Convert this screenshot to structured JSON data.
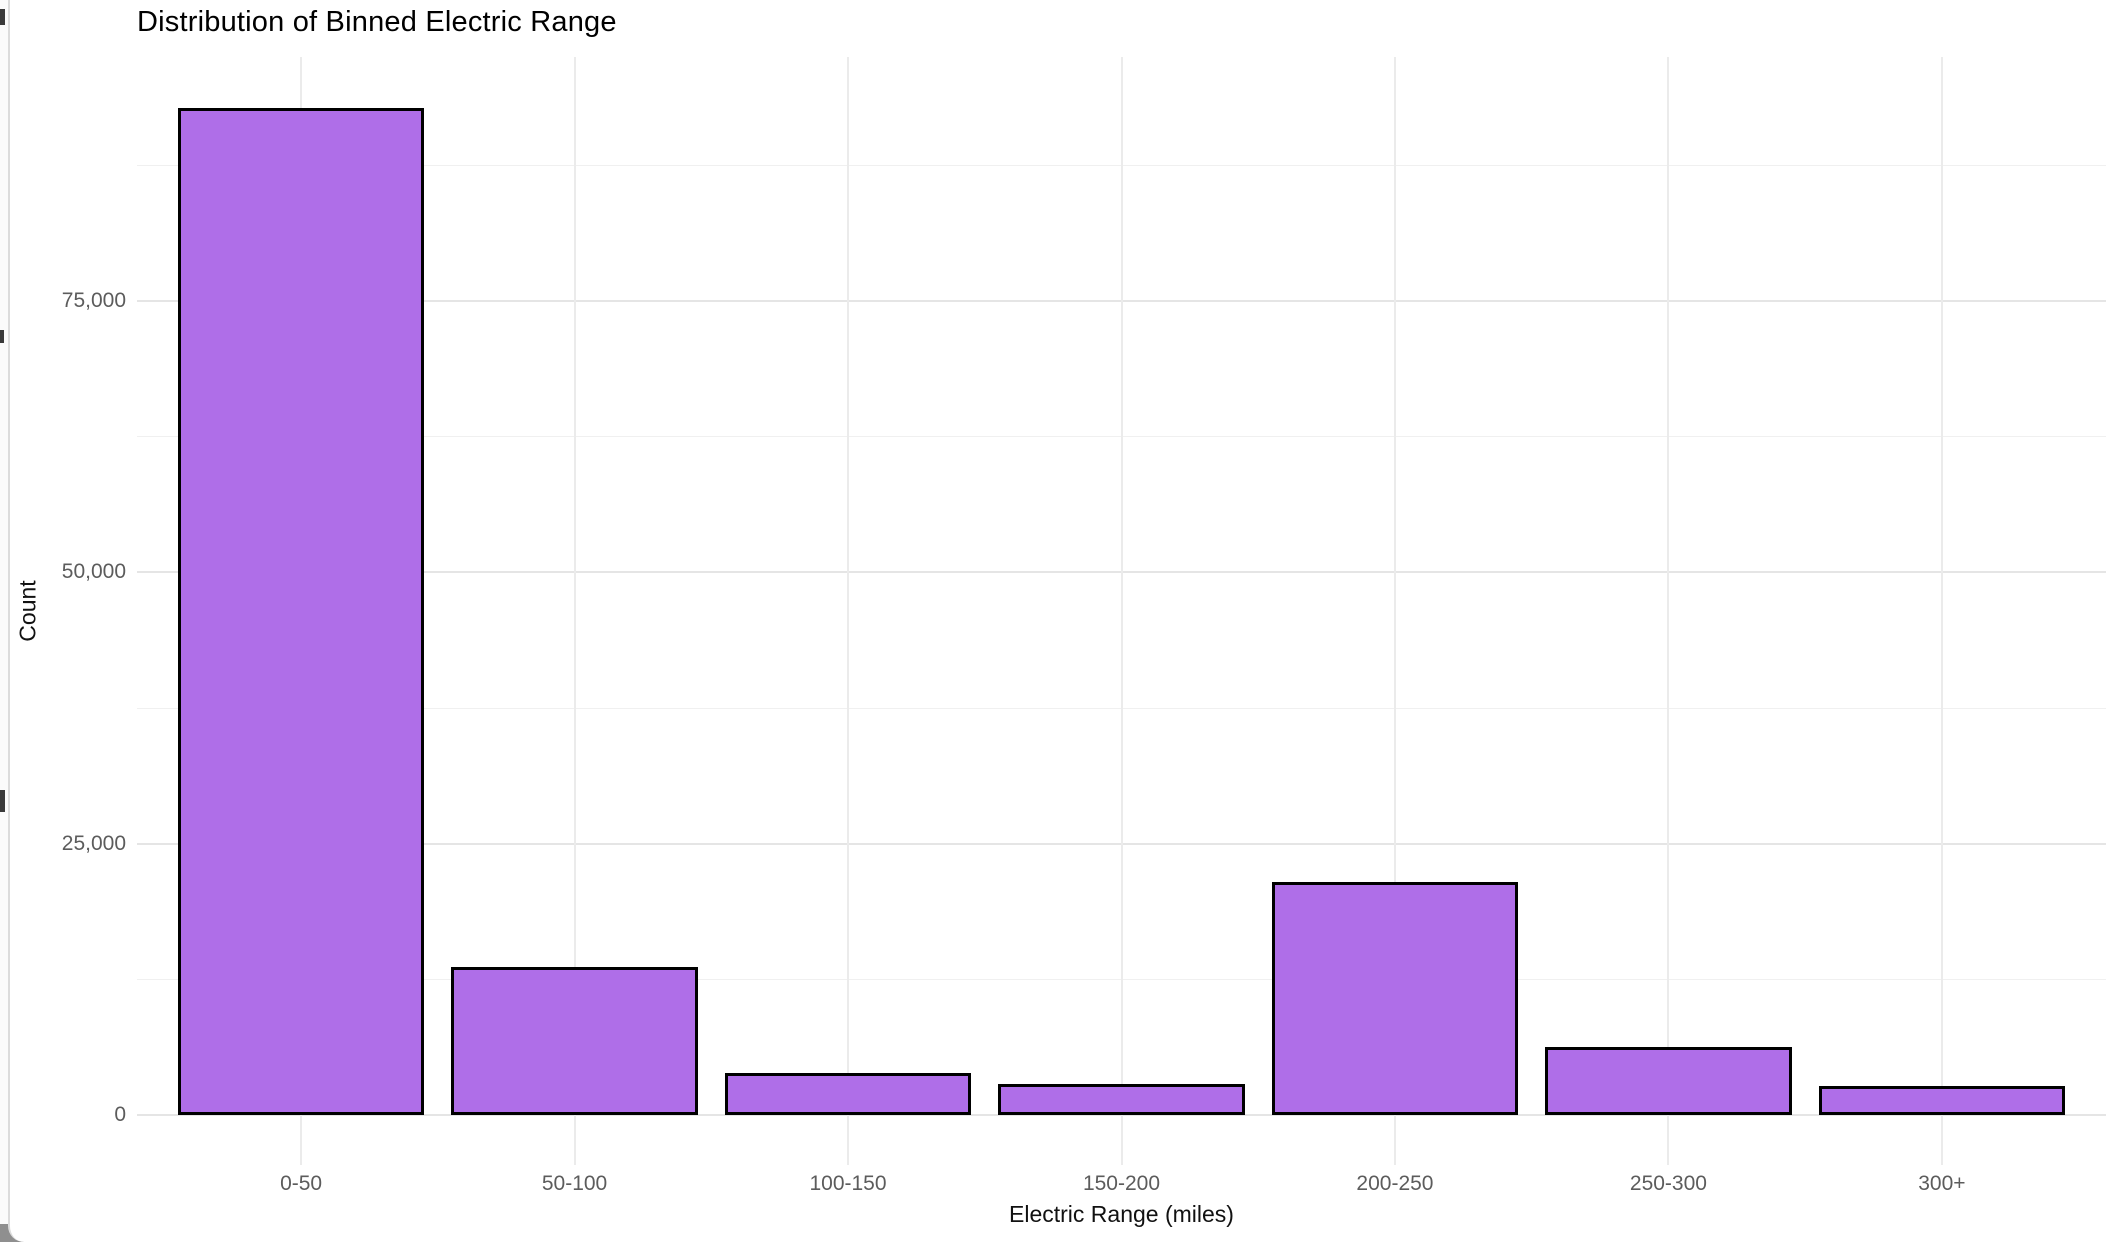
{
  "chart_data": {
    "type": "bar",
    "title": "Distribution of Binned Electric Range",
    "xlabel": "Electric Range (miles)",
    "ylabel": "Count",
    "categories": [
      "0-50",
      "50-100",
      "100-150",
      "150-200",
      "200-250",
      "250-300",
      "300+"
    ],
    "values": [
      92800,
      13600,
      3900,
      2900,
      21500,
      6300,
      2700
    ],
    "y_ticks": [
      {
        "value": 0,
        "label": "0"
      },
      {
        "value": 25000,
        "label": "25,000"
      },
      {
        "value": 50000,
        "label": "50,000"
      },
      {
        "value": 75000,
        "label": "75,000"
      }
    ],
    "y_minor_ticks": [
      12500,
      37500,
      62500,
      87500
    ],
    "ylim": [
      -4600,
      97500
    ],
    "grid": "horizontal major+minor, vertical major at category centers",
    "legend": "none",
    "bar_fill": "#af6ee8",
    "bar_stroke": "#000000",
    "category_expand": 0.6,
    "bar_width_fraction": 0.9
  },
  "colors": {
    "background": "#ffffff",
    "grid_major": "#e5e5e5",
    "grid_minor": "#f0f0f0",
    "axis_text": "#5c5c5c",
    "axis_title_text": "#111111",
    "title_text": "#000000",
    "page_edge_gray": "#8f8f8f"
  }
}
